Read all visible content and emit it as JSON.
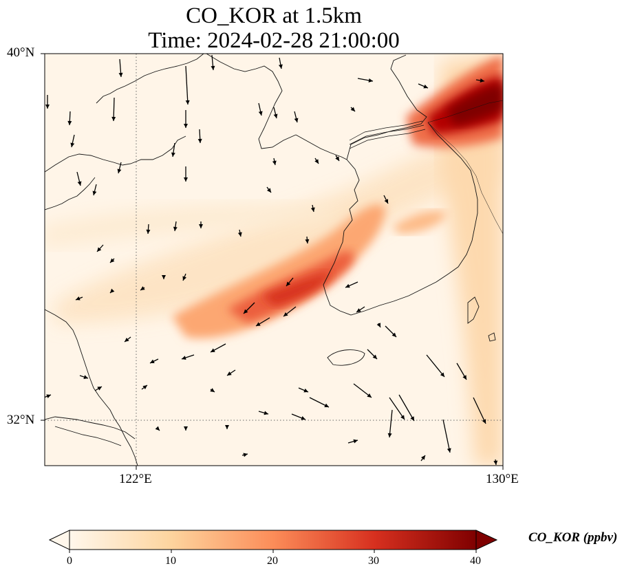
{
  "title_line1": "CO_KOR at 1.5km",
  "title_line2": "Time: 2024-02-28 21:00:00",
  "map": {
    "lat_labels": [
      "40°N",
      "32°N"
    ],
    "lon_labels": [
      "122°E",
      "130°E"
    ],
    "extent": {
      "lon": [
        120,
        130
      ],
      "lat": [
        31,
        40
      ]
    },
    "gridlines": {
      "lon": 122,
      "lat": 32,
      "style": "dotted"
    },
    "field": "CO_KOR",
    "plume_hotspots": [
      {
        "name": "west-sea-band",
        "value_ppbv": 24
      },
      {
        "name": "northeast-hotspot",
        "value_ppbv": 40
      }
    ]
  },
  "colorbar": {
    "label": "CO_KOR (ppbv)",
    "ticks": [
      "0",
      "10",
      "20",
      "30",
      "40"
    ],
    "range": [
      0,
      40
    ],
    "colormap": "OrRd",
    "colors": [
      "#fff7ec",
      "#fdd49e",
      "#fc8d59",
      "#d7301f",
      "#7f0000"
    ]
  }
}
